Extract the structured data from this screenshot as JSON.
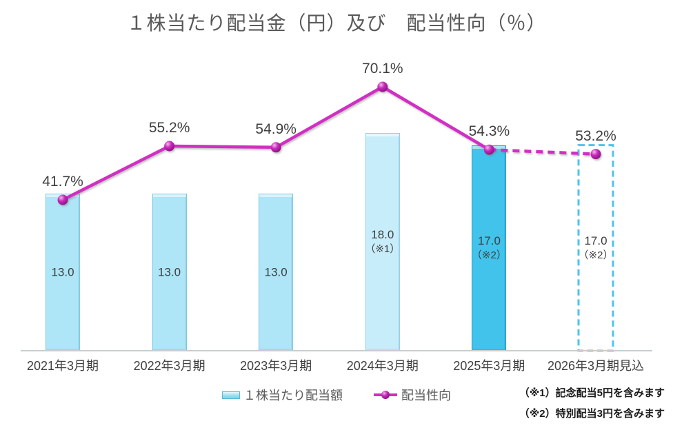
{
  "title": "１株当たり配当金（円）及び　配当性向（％）",
  "chart_data": {
    "type": "bar",
    "subtype": "combo-bar-line",
    "categories": [
      "2021年3月期",
      "2022年3月期",
      "2023年3月期",
      "2024年3月期",
      "2025年3月期",
      "2026年3月期見込"
    ],
    "series": [
      {
        "name": "１株当たり配当額",
        "type": "bar",
        "unit": "円",
        "values": [
          13.0,
          13.0,
          13.0,
          18.0,
          17.0,
          17.0
        ],
        "value_labels": [
          [
            "13.0"
          ],
          [
            "13.0"
          ],
          [
            "13.0"
          ],
          [
            "18.0",
            "（※1）"
          ],
          [
            "17.0",
            "（※2）"
          ],
          [
            "17.0",
            "（※2）"
          ]
        ],
        "bar_styles": [
          "normal",
          "normal",
          "normal",
          "pale",
          "highlight",
          "forecast"
        ]
      },
      {
        "name": "配当性向",
        "type": "line",
        "unit": "%",
        "values": [
          41.7,
          55.2,
          54.9,
          70.1,
          54.3,
          53.2
        ],
        "point_labels": [
          "41.7%",
          "55.2%",
          "54.9%",
          "70.1%",
          "54.3%",
          "53.2%"
        ],
        "dashed_segment_from_index": 4
      }
    ],
    "footnotes": [
      "（※1）記念配当5円を含みます",
      "（※2）特別配当3円を含みます"
    ],
    "legend_position": "bottom",
    "grid": "off",
    "colors": {
      "bar_fill": "#AEE5F7",
      "bar_border": "#79C9E2",
      "bar_pale_fill": "#C8EDFA",
      "bar_pale_border": "#8FD3EA",
      "bar_highlight_fill": "#41C3EC",
      "bar_highlight_border": "#1D9FCB",
      "forecast_border": "#4FC3EC",
      "line": "#D22DC4",
      "marker_light": "#F5B8EE",
      "marker_mid": "#C72BB9",
      "marker_dark": "#8A0F82",
      "title_text": "#595959",
      "label_text": "#3F3F3F",
      "axis_line": "#C9CCCF",
      "note_text": "#1A1A1A"
    }
  }
}
